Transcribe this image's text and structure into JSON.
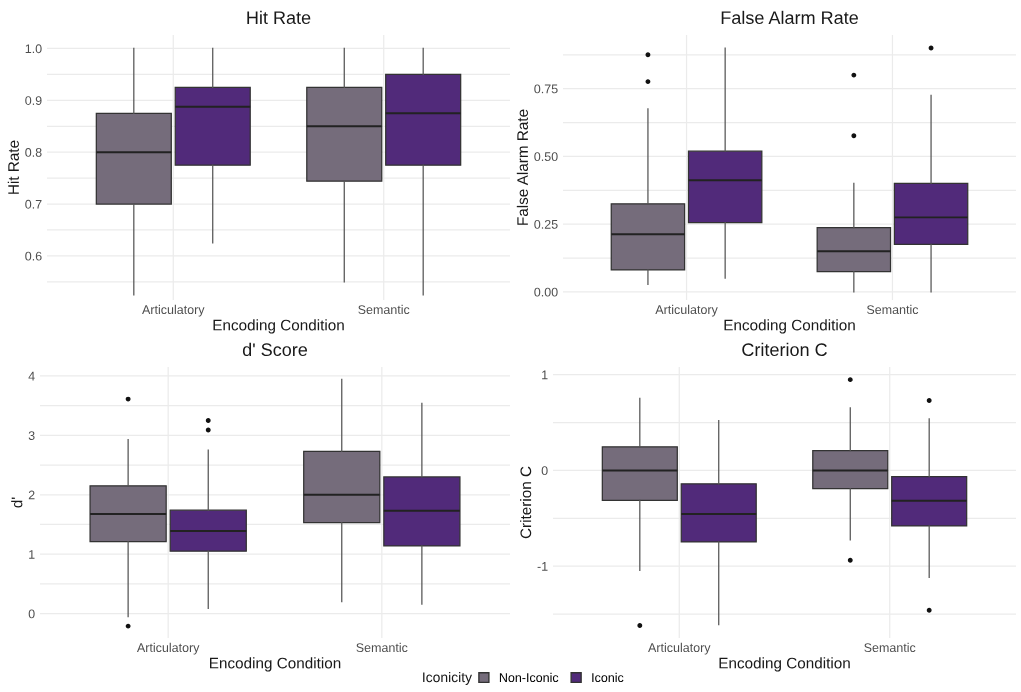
{
  "chart_data": [
    {
      "type": "box",
      "title": "Hit Rate",
      "xlabel": "Encoding Condition",
      "ylabel": "Hit Rate",
      "categories": [
        "Articulatory",
        "Semantic"
      ],
      "ylim": [
        0.515,
        1.026
      ],
      "yticks": [
        {
          "value": 0.55,
          "label": null
        },
        0.6,
        {
          "value": 0.65,
          "label": null
        },
        0.7,
        {
          "value": 0.75,
          "label": null
        },
        0.8,
        {
          "value": 0.85,
          "label": null
        },
        0.9,
        {
          "value": 0.95,
          "label": null
        },
        {
          "value": 1,
          "label": "1.0"
        }
      ],
      "grid": true,
      "legend": "bottom",
      "legend_title": "Iconicity",
      "series": [
        {
          "name": "Non-Iconic",
          "color": "#756c7b",
          "boxes": [
            {
              "low": 0.525,
              "q1": 0.7,
              "median": 0.8,
              "q3": 0.875,
              "high": 1.0
            },
            {
              "low": 0.55,
              "q1": 0.744,
              "median": 0.85,
              "q3": 0.925,
              "high": 1.0
            }
          ]
        },
        {
          "name": "Iconic",
          "color": "#512a7a",
          "boxes": [
            {
              "low": 0.625,
              "q1": 0.775,
              "median": 0.8875,
              "q3": 0.925,
              "high": 1.0
            },
            {
              "low": 0.525,
              "q1": 0.775,
              "median": 0.875,
              "q3": 0.95,
              "high": 1.0
            }
          ]
        }
      ]
    },
    {
      "type": "box",
      "title": "False Alarm Rate",
      "xlabel": "Encoding Condition",
      "ylabel": "False Alarm Rate",
      "categories": [
        "Articulatory",
        "Semantic"
      ],
      "ylim": [
        -0.03,
        0.948
      ],
      "yticks": [
        {
          "value": 0,
          "label": "0.00"
        },
        {
          "value": 0.125,
          "label": null
        },
        {
          "value": 0.25,
          "label": "0.25"
        },
        {
          "value": 0.375,
          "label": null
        },
        {
          "value": 0.5,
          "label": "0.50"
        },
        {
          "value": 0.625,
          "label": null
        },
        {
          "value": 0.75,
          "label": "0.75"
        },
        {
          "value": 0.875,
          "label": null
        }
      ],
      "grid": true,
      "series": [
        {
          "color": "#756c7b",
          "boxes": [
            {
              "low": 0.028,
              "q1": 0.081,
              "median": 0.213,
              "q3": 0.325,
              "high": 0.675,
              "outliers": [
                0.875,
                0.776
              ]
            },
            {
              "low": 0.0,
              "q1": 0.075,
              "median": 0.15,
              "q3": 0.237,
              "high": 0.4,
              "outliers": [
                0.8,
                0.576
              ]
            }
          ]
        },
        {
          "color": "#512a7a",
          "boxes": [
            {
              "low": 0.051,
              "q1": 0.256,
              "median": 0.412,
              "q3": 0.519,
              "high": 0.9
            },
            {
              "low": 0.0,
              "q1": 0.175,
              "median": 0.275,
              "q3": 0.4,
              "high": 0.725,
              "outliers": [
                0.9
              ]
            }
          ]
        }
      ]
    },
    {
      "type": "box",
      "title": "d' Score",
      "xlabel": "Encoding Condition",
      "ylabel": "d'",
      "categories": [
        "Articulatory",
        "Semantic"
      ],
      "ylim": [
        -0.41,
        4.15
      ],
      "yticks": [
        0,
        {
          "value": 0.5,
          "label": null
        },
        1,
        {
          "value": 1.5,
          "label": null
        },
        2,
        {
          "value": 2.5,
          "label": null
        },
        3,
        {
          "value": 3.5,
          "label": null
        },
        4
      ],
      "grid": true,
      "series": [
        {
          "color": "#756c7b",
          "boxes": [
            {
              "low": -0.05,
              "q1": 1.21,
              "median": 1.675,
              "q3": 2.15,
              "high": 2.93,
              "outliers": [
                3.61,
                -0.21
              ]
            },
            {
              "low": 0.2,
              "q1": 1.53,
              "median": 2.0,
              "q3": 2.73,
              "high": 3.94
            }
          ]
        },
        {
          "color": "#512a7a",
          "boxes": [
            {
              "low": 0.09,
              "q1": 1.05,
              "median": 1.39,
              "q3": 1.74,
              "high": 2.75,
              "outliers": [
                3.25,
                3.09
              ]
            },
            {
              "low": 0.16,
              "q1": 1.14,
              "median": 1.73,
              "q3": 2.3,
              "high": 3.54
            }
          ]
        }
      ]
    },
    {
      "type": "box",
      "title": "Criterion C",
      "xlabel": "Encoding Condition",
      "ylabel": "Criterion C",
      "categories": [
        "Articulatory",
        "Semantic"
      ],
      "ylim": [
        -1.75,
        1.08
      ],
      "yticks": [
        {
          "value": -1.5,
          "label": null
        },
        {
          "value": -1,
          "label": "-1"
        },
        {
          "value": -0.5,
          "label": null
        },
        0,
        {
          "value": 0.5,
          "label": null
        },
        1
      ],
      "grid": true,
      "series": [
        {
          "color": "#756c7b",
          "boxes": [
            {
              "low": -1.045,
              "q1": -0.3125,
              "median": 0.0,
              "q3": 0.247,
              "high": 0.753,
              "outliers": [
                -1.62
              ]
            },
            {
              "low": -0.726,
              "q1": -0.19,
              "median": 0.0,
              "q3": 0.208,
              "high": 0.653,
              "outliers": [
                0.948,
                -0.9375
              ]
            }
          ]
        },
        {
          "color": "#512a7a",
          "boxes": [
            {
              "low": -1.61,
              "q1": -0.747,
              "median": -0.455,
              "q3": -0.14,
              "high": 0.52
            },
            {
              "low": -1.118,
              "q1": -0.58,
              "median": -0.316,
              "q3": -0.066,
              "high": 0.538,
              "outliers": [
                0.73,
                -1.46
              ]
            }
          ]
        }
      ]
    }
  ]
}
